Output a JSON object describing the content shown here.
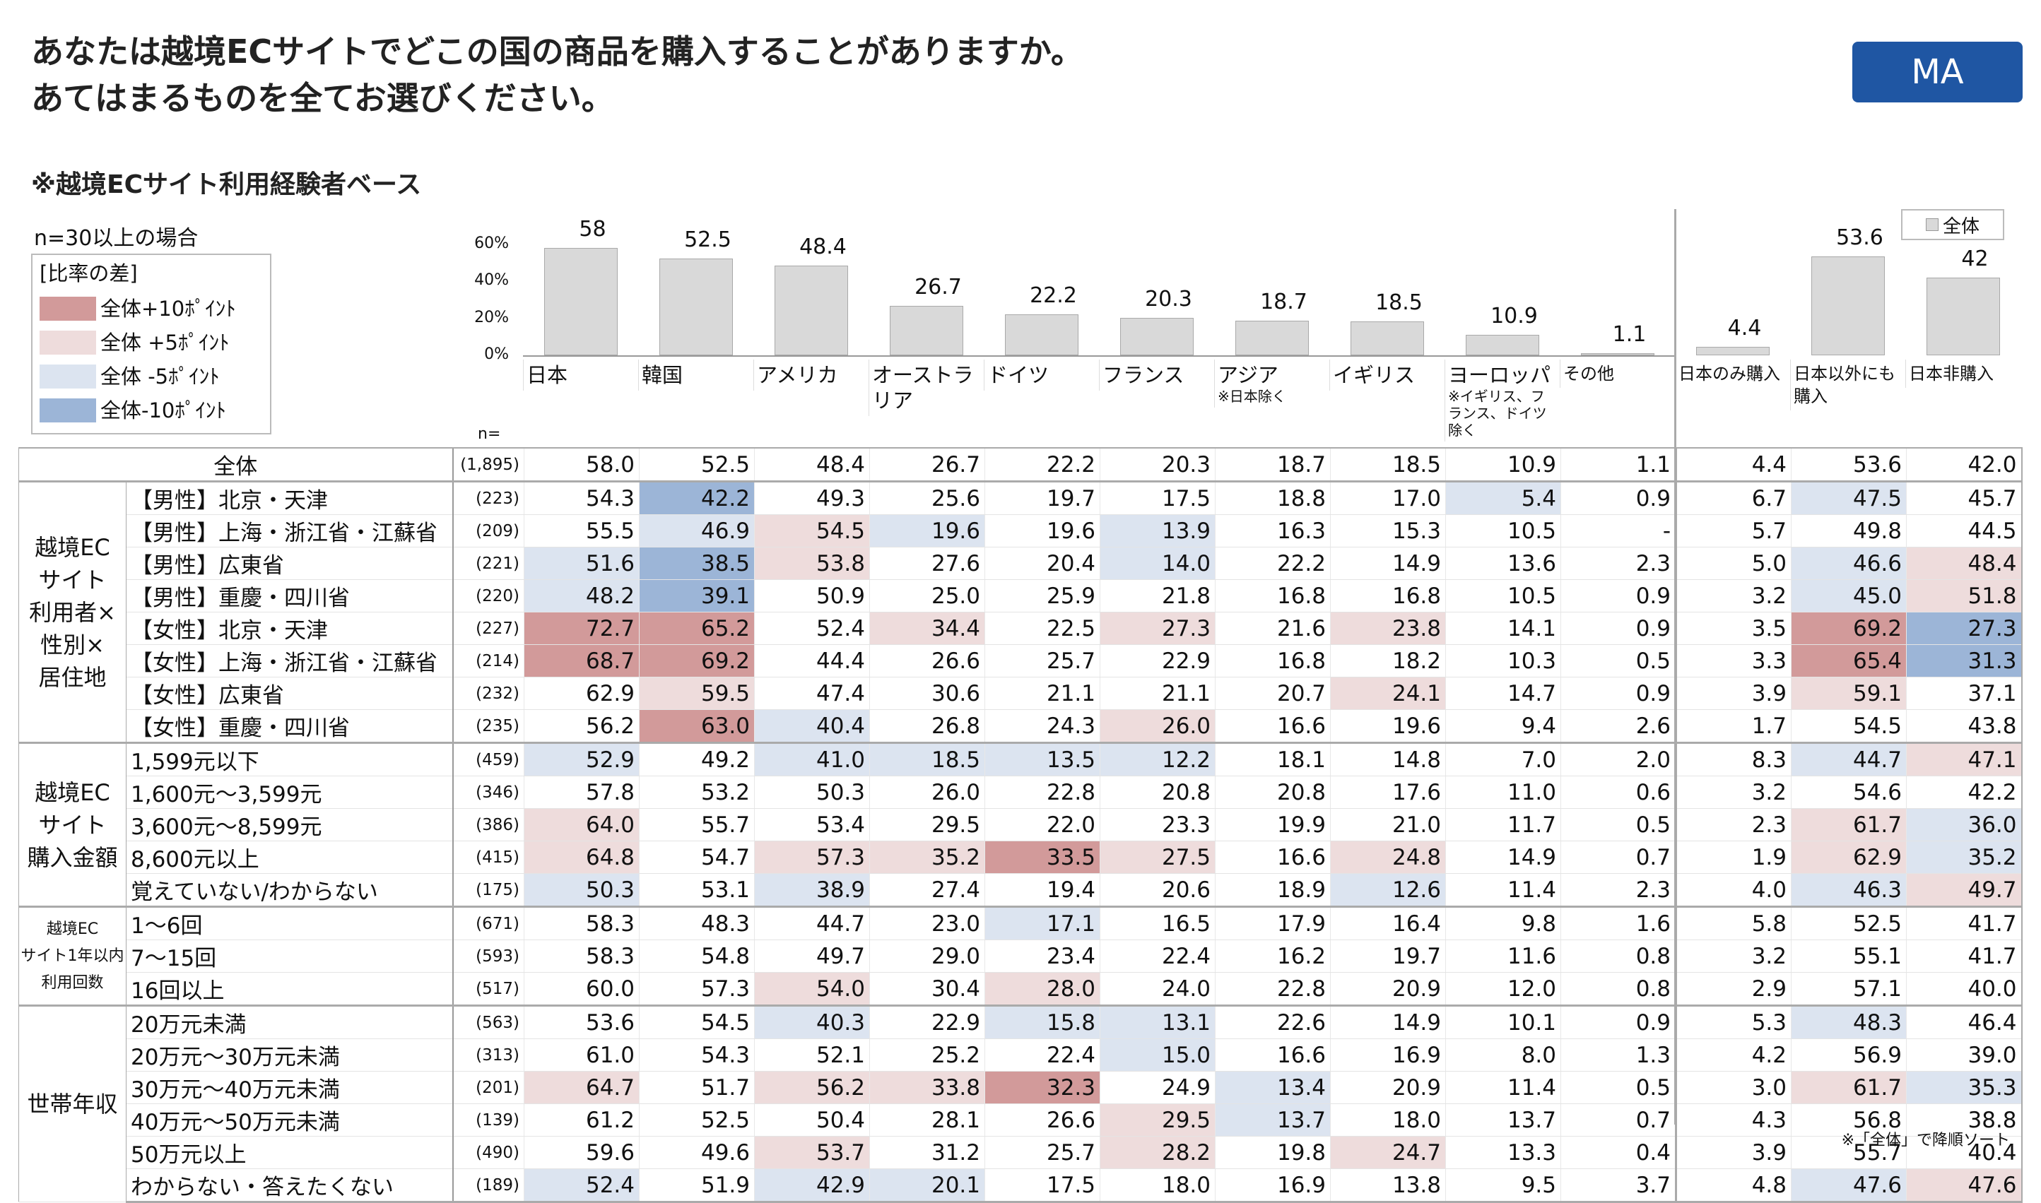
{
  "title": {
    "line1": "あなたは越境ECサイトでどこの国の商品を購入することがありますか。",
    "line2": "あてはまるものを全てお選びください。"
  },
  "badge": "MA",
  "base_note": "※越境ECサイト利用経験者ベース",
  "n_condition": "n=30以上の場合",
  "legend": {
    "title": "[比率の差]",
    "items": [
      {
        "code": "a",
        "label": "全体+10ﾎﾟｲﾝﾄ",
        "color": "#d29a9a"
      },
      {
        "code": "b",
        "label": "全体 +5ﾎﾟｲﾝﾄ",
        "color": "#eedcdc"
      },
      {
        "code": "c",
        "label": "全体 -5ﾎﾟｲﾝﾄ",
        "color": "#dce4f0"
      },
      {
        "code": "d",
        "label": "全体-10ﾎﾟｲﾝﾄ",
        "color": "#9cb5d7"
      }
    ]
  },
  "whole_legend": "全体",
  "n_label": "n=",
  "chart_data": {
    "type": "bar",
    "title": "全体",
    "yticks": [
      "60%",
      "40%",
      "20%",
      "0%"
    ],
    "ylim": [
      0,
      60
    ],
    "categories": [
      "日本",
      "韓国",
      "アメリカ",
      "オーストラリア",
      "ドイツ",
      "フランス",
      "アジア",
      "イギリス",
      "ヨーロッパ",
      "その他",
      "日本のみ購入",
      "日本以外にも購入",
      "日本非購入"
    ],
    "values": [
      58.0,
      52.5,
      48.4,
      26.7,
      22.2,
      20.3,
      18.7,
      18.5,
      10.9,
      1.1,
      4.4,
      53.6,
      42.0
    ]
  },
  "columns": [
    {
      "name": "日本"
    },
    {
      "name": "韓国"
    },
    {
      "name": "アメリカ"
    },
    {
      "name": "オーストラリア"
    },
    {
      "name": "ドイツ"
    },
    {
      "name": "フランス"
    },
    {
      "name": "アジア",
      "sub": "※日本除く"
    },
    {
      "name": "イギリス"
    },
    {
      "name": "ヨーロッパ",
      "sub": "※イギリス、フランス、ドイツ除く"
    },
    {
      "name": "その他",
      "small": true
    },
    {
      "name": "日本のみ購入",
      "small": true
    },
    {
      "name": "日本以外にも購入",
      "small": true
    },
    {
      "name": "日本非購入",
      "small": true
    }
  ],
  "groups": [
    {
      "label": "越境EC\nサイト\n利用者×\n性別×\n居住地",
      "rows": 8
    },
    {
      "label": "越境EC\nサイト\n購入金額",
      "rows": 5
    },
    {
      "label": "越境EC\nサイト1年以内\n利用回数",
      "rows": 3,
      "small": true
    },
    {
      "label": "世帯年収",
      "rows": 6
    }
  ],
  "total_row": {
    "label": "全体",
    "n": "(1,895)",
    "values": [
      "58.0",
      "52.5",
      "48.4",
      "26.7",
      "22.2",
      "20.3",
      "18.7",
      "18.5",
      "10.9",
      "1.1",
      "4.4",
      "53.6",
      "42.0"
    ],
    "hl": "0000000000000"
  },
  "rows": [
    {
      "label": "【男性】北京・天津",
      "n": "(223)",
      "values": [
        "54.3",
        "42.2",
        "49.3",
        "25.6",
        "19.7",
        "17.5",
        "18.8",
        "17.0",
        "5.4",
        "0.9",
        "6.7",
        "47.5",
        "45.7"
      ],
      "hl": "0d000000c00c0"
    },
    {
      "label": "【男性】上海・浙江省・江蘇省",
      "n": "(209)",
      "values": [
        "55.5",
        "46.9",
        "54.5",
        "19.6",
        "19.6",
        "13.9",
        "16.3",
        "15.3",
        "10.5",
        "-",
        "5.7",
        "49.8",
        "44.5"
      ],
      "hl": "0cbc0c0000000"
    },
    {
      "label": "【男性】広東省",
      "n": "(221)",
      "values": [
        "51.6",
        "38.5",
        "53.8",
        "27.6",
        "20.4",
        "14.0",
        "22.2",
        "14.9",
        "13.6",
        "2.3",
        "5.0",
        "46.6",
        "48.4"
      ],
      "hl": "cdb00c00000cb"
    },
    {
      "label": "【男性】重慶・四川省",
      "n": "(220)",
      "values": [
        "48.2",
        "39.1",
        "50.9",
        "25.0",
        "25.9",
        "21.8",
        "16.8",
        "16.8",
        "10.5",
        "0.9",
        "3.2",
        "45.0",
        "51.8"
      ],
      "hl": "cd000000000cb"
    },
    {
      "label": "【女性】北京・天津",
      "n": "(227)",
      "values": [
        "72.7",
        "65.2",
        "52.4",
        "34.4",
        "22.5",
        "27.3",
        "21.6",
        "23.8",
        "14.1",
        "0.9",
        "3.5",
        "69.2",
        "27.3"
      ],
      "hl": "aa0b0b0b000ad"
    },
    {
      "label": "【女性】上海・浙江省・江蘇省",
      "n": "(214)",
      "values": [
        "68.7",
        "69.2",
        "44.4",
        "26.6",
        "25.7",
        "22.9",
        "16.8",
        "18.2",
        "10.3",
        "0.5",
        "3.3",
        "65.4",
        "31.3"
      ],
      "hl": "aa000000000ad"
    },
    {
      "label": "【女性】広東省",
      "n": "(232)",
      "values": [
        "62.9",
        "59.5",
        "47.4",
        "30.6",
        "21.1",
        "21.1",
        "20.7",
        "24.1",
        "14.7",
        "0.9",
        "3.9",
        "59.1",
        "37.1"
      ],
      "hl": "0b00000b000b0"
    },
    {
      "label": "【女性】重慶・四川省",
      "n": "(235)",
      "values": [
        "56.2",
        "63.0",
        "40.4",
        "26.8",
        "24.3",
        "26.0",
        "16.6",
        "19.6",
        "9.4",
        "2.6",
        "1.7",
        "54.5",
        "43.8"
      ],
      "hl": "0ac00b0000000"
    },
    {
      "label": "1,599元以下",
      "n": "(459)",
      "values": [
        "52.9",
        "49.2",
        "41.0",
        "18.5",
        "13.5",
        "12.2",
        "18.1",
        "14.8",
        "7.0",
        "2.0",
        "8.3",
        "44.7",
        "47.1"
      ],
      "hl": "c0cccc00000cb"
    },
    {
      "label": "1,600元～3,599元",
      "n": "(346)",
      "values": [
        "57.8",
        "53.2",
        "50.3",
        "26.0",
        "22.8",
        "20.8",
        "20.8",
        "17.6",
        "11.0",
        "0.6",
        "3.2",
        "54.6",
        "42.2"
      ],
      "hl": "0000000000000"
    },
    {
      "label": "3,600元～8,599元",
      "n": "(386)",
      "values": [
        "64.0",
        "55.7",
        "53.4",
        "29.5",
        "22.0",
        "23.3",
        "19.9",
        "21.0",
        "11.7",
        "0.5",
        "2.3",
        "61.7",
        "36.0"
      ],
      "hl": "b0000000000bc"
    },
    {
      "label": "8,600元以上",
      "n": "(415)",
      "values": [
        "64.8",
        "54.7",
        "57.3",
        "35.2",
        "33.5",
        "27.5",
        "16.6",
        "24.8",
        "14.9",
        "0.7",
        "1.9",
        "62.9",
        "35.2"
      ],
      "hl": "b0bbab0b000bc"
    },
    {
      "label": "覚えていない/わからない",
      "n": "(175)",
      "values": [
        "50.3",
        "53.1",
        "38.9",
        "27.4",
        "19.4",
        "20.6",
        "18.9",
        "12.6",
        "11.4",
        "2.3",
        "4.0",
        "46.3",
        "49.7"
      ],
      "hl": "c0c0000c000cb"
    },
    {
      "label": "1～6回",
      "n": "(671)",
      "values": [
        "58.3",
        "48.3",
        "44.7",
        "23.0",
        "17.1",
        "16.5",
        "17.9",
        "16.4",
        "9.8",
        "1.6",
        "5.8",
        "52.5",
        "41.7"
      ],
      "hl": "0000c00000000"
    },
    {
      "label": "7～15回",
      "n": "(593)",
      "values": [
        "58.3",
        "54.8",
        "49.7",
        "29.0",
        "23.4",
        "22.4",
        "16.2",
        "19.7",
        "11.6",
        "0.8",
        "3.2",
        "55.1",
        "41.7"
      ],
      "hl": "0000000000000"
    },
    {
      "label": "16回以上",
      "n": "(517)",
      "values": [
        "60.0",
        "57.3",
        "54.0",
        "30.4",
        "28.0",
        "24.0",
        "22.8",
        "20.9",
        "12.0",
        "0.8",
        "2.9",
        "57.1",
        "40.0"
      ],
      "hl": "00b0b00000000"
    },
    {
      "label": "20万元未満",
      "n": "(563)",
      "values": [
        "53.6",
        "54.5",
        "40.3",
        "22.9",
        "15.8",
        "13.1",
        "22.6",
        "14.9",
        "10.1",
        "0.9",
        "5.3",
        "48.3",
        "46.4"
      ],
      "hl": "00c0cc00000c0"
    },
    {
      "label": "20万元～30万元未満",
      "n": "(313)",
      "values": [
        "61.0",
        "54.3",
        "52.1",
        "25.2",
        "22.4",
        "15.0",
        "16.6",
        "16.9",
        "8.0",
        "1.3",
        "4.2",
        "56.9",
        "39.0"
      ],
      "hl": "00000c0000000"
    },
    {
      "label": "30万元～40万元未満",
      "n": "(201)",
      "values": [
        "64.7",
        "51.7",
        "56.2",
        "33.8",
        "32.3",
        "24.9",
        "13.4",
        "20.9",
        "11.4",
        "0.5",
        "3.0",
        "61.7",
        "35.3"
      ],
      "hl": "b0bba0c0000bc"
    },
    {
      "label": "40万元～50万元未満",
      "n": "(139)",
      "values": [
        "61.2",
        "52.5",
        "50.4",
        "28.1",
        "26.6",
        "29.5",
        "13.7",
        "18.0",
        "13.7",
        "0.7",
        "4.3",
        "56.8",
        "38.8"
      ],
      "hl": "00000bc000000"
    },
    {
      "label": "50万元以上",
      "n": "(490)",
      "values": [
        "59.6",
        "49.6",
        "53.7",
        "31.2",
        "25.7",
        "28.2",
        "19.8",
        "24.7",
        "13.3",
        "0.4",
        "3.9",
        "55.7",
        "40.4"
      ],
      "hl": "00b00b0b00000"
    },
    {
      "label": "わからない・答えたくない",
      "n": "(189)",
      "values": [
        "52.4",
        "51.9",
        "42.9",
        "20.1",
        "17.5",
        "18.0",
        "16.9",
        "13.8",
        "9.5",
        "3.7",
        "4.8",
        "47.6",
        "47.6"
      ],
      "hl": "c0cc0000000cb"
    }
  ],
  "footnote": "※「全体」で降順ソート"
}
